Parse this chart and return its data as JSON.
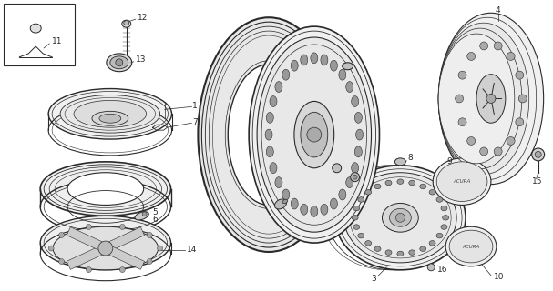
{
  "bg_color": "#ffffff",
  "line_color": "#2a2a2a",
  "fig_width": 6.07,
  "fig_height": 3.2,
  "dpi": 100
}
